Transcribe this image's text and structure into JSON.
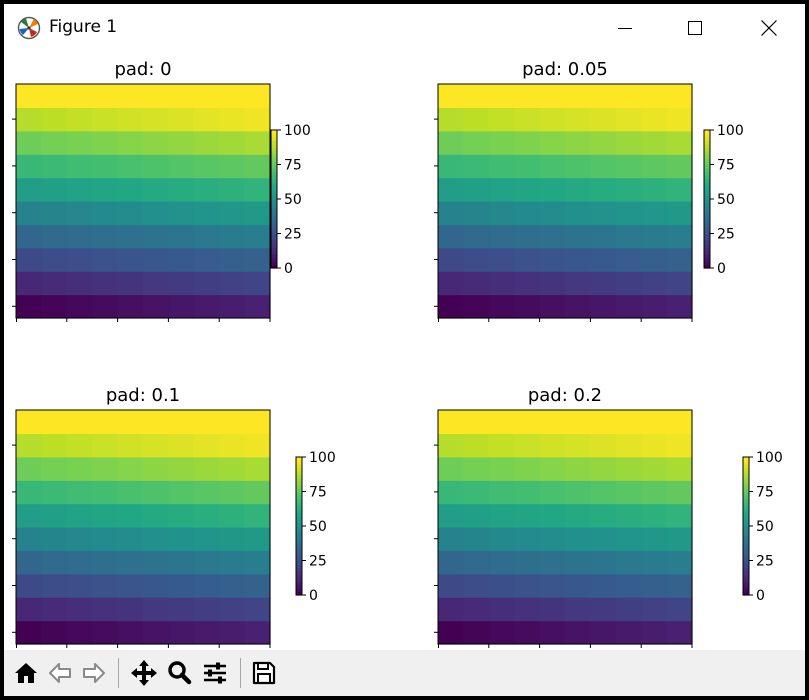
{
  "window": {
    "title": "Figure 1"
  },
  "toolbar": {
    "buttons": [
      {
        "name": "home",
        "icon": "home-icon"
      },
      {
        "name": "back",
        "icon": "back-arrow-icon"
      },
      {
        "name": "forward",
        "icon": "forward-arrow-icon"
      },
      {
        "name": "pan",
        "icon": "move-icon"
      },
      {
        "name": "zoom",
        "icon": "magnifier-icon"
      },
      {
        "name": "configure",
        "icon": "sliders-icon"
      },
      {
        "name": "save",
        "icon": "floppy-disk-icon"
      }
    ]
  },
  "chart_data": [
    {
      "type": "heatmap",
      "title": "pad: 0",
      "rows": [
        0,
        11.1,
        22.2,
        33.3,
        44.4,
        55.6,
        66.7,
        77.8,
        88.9,
        100
      ],
      "colormap": "viridis",
      "colorbar": {
        "ticks": [
          "0",
          "25",
          "50",
          "75",
          "100"
        ],
        "range": [
          0,
          100
        ],
        "pad": 0
      }
    },
    {
      "type": "heatmap",
      "title": "pad: 0.05",
      "rows": [
        0,
        11.1,
        22.2,
        33.3,
        44.4,
        55.6,
        66.7,
        77.8,
        88.9,
        100
      ],
      "colormap": "viridis",
      "colorbar": {
        "ticks": [
          "0",
          "25",
          "50",
          "75",
          "100"
        ],
        "range": [
          0,
          100
        ],
        "pad": 0.05
      }
    },
    {
      "type": "heatmap",
      "title": "pad: 0.1",
      "rows": [
        0,
        11.1,
        22.2,
        33.3,
        44.4,
        55.6,
        66.7,
        77.8,
        88.9,
        100
      ],
      "colormap": "viridis",
      "colorbar": {
        "ticks": [
          "0",
          "25",
          "50",
          "75",
          "100"
        ],
        "range": [
          0,
          100
        ],
        "pad": 0.1
      }
    },
    {
      "type": "heatmap",
      "title": "pad: 0.2",
      "rows": [
        0,
        11.1,
        22.2,
        33.3,
        44.4,
        55.6,
        66.7,
        77.8,
        88.9,
        100
      ],
      "colormap": "viridis",
      "colorbar": {
        "ticks": [
          "0",
          "25",
          "50",
          "75",
          "100"
        ],
        "range": [
          0,
          100
        ],
        "pad": 0.2
      }
    }
  ]
}
